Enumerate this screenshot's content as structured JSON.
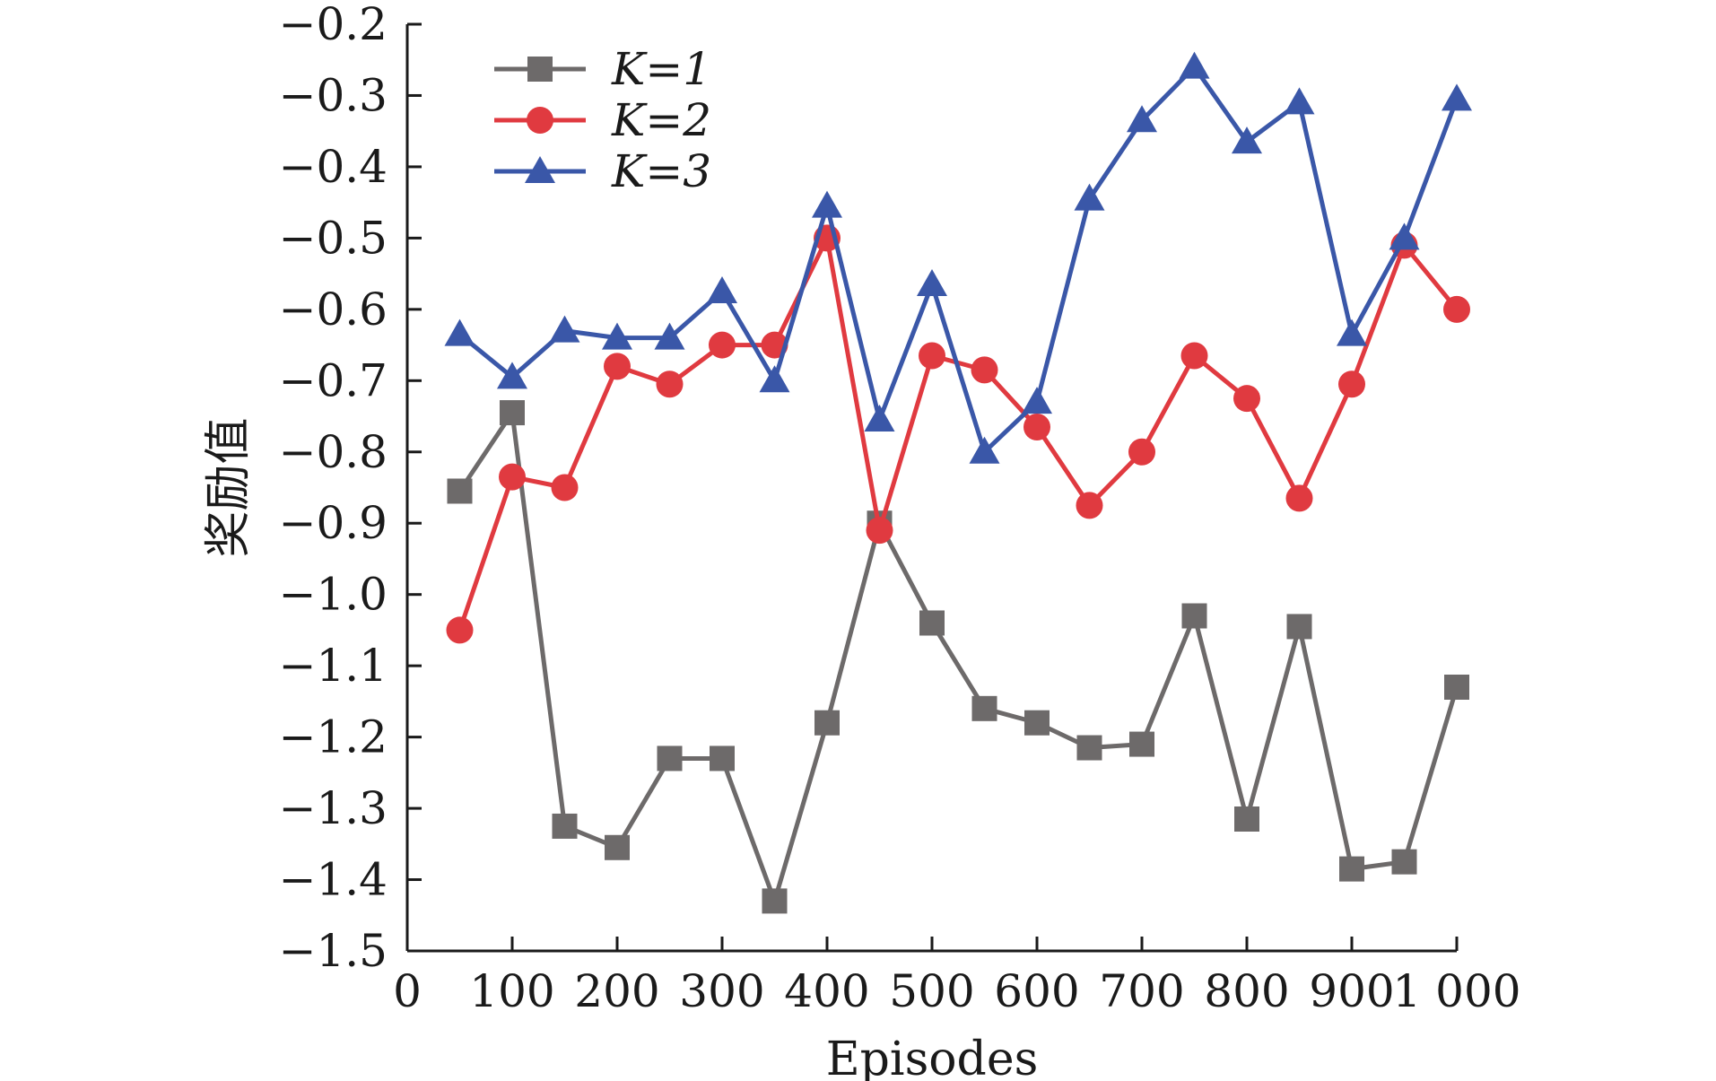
{
  "chart_data": {
    "type": "line",
    "xlabel": "Episodes",
    "ylabel": "奖励值",
    "xlim": [
      0,
      1000
    ],
    "ylim": [
      -1.5,
      -0.2
    ],
    "x_ticks": [
      0,
      100,
      200,
      300,
      400,
      500,
      600,
      700,
      800,
      900,
      1000
    ],
    "x_tick_labels": [
      "0",
      "100",
      "200",
      "300",
      "400",
      "500",
      "600",
      "700",
      "800",
      "900",
      "1 000"
    ],
    "y_ticks": [
      -0.2,
      -0.3,
      -0.4,
      -0.5,
      -0.6,
      -0.7,
      -0.8,
      -0.9,
      -1.0,
      -1.1,
      -1.2,
      -1.3,
      -1.4,
      -1.5
    ],
    "y_tick_labels": [
      "−0.2",
      "−0.3",
      "−0.4",
      "−0.5",
      "−0.6",
      "−0.7",
      "−0.8",
      "−0.9",
      "−1.0",
      "−1.1",
      "−1.2",
      "−1.3",
      "−1.4",
      "−1.5"
    ],
    "grid": false,
    "legend_position": "top-left",
    "x": [
      50,
      100,
      150,
      200,
      250,
      300,
      350,
      400,
      450,
      500,
      550,
      600,
      650,
      700,
      750,
      800,
      850,
      900,
      950,
      1000
    ],
    "series": [
      {
        "name": "K=1",
        "marker": "square",
        "color": "#6d6a6a",
        "values": [
          -0.855,
          -0.745,
          -1.325,
          -1.355,
          -1.23,
          -1.23,
          -1.43,
          -1.18,
          -0.9,
          -1.04,
          -1.16,
          -1.18,
          -1.215,
          -1.21,
          -1.03,
          -1.315,
          -1.045,
          -1.385,
          -1.375,
          -1.13
        ]
      },
      {
        "name": "K=2",
        "marker": "circle",
        "color": "#e03a40",
        "values": [
          -1.05,
          -0.835,
          -0.85,
          -0.68,
          -0.705,
          -0.65,
          -0.65,
          -0.5,
          -0.91,
          -0.665,
          -0.685,
          -0.765,
          -0.875,
          -0.8,
          -0.665,
          -0.725,
          -0.865,
          -0.705,
          -0.51,
          -0.6
        ]
      },
      {
        "name": "K=3",
        "marker": "triangle",
        "color": "#3a57a8",
        "values": [
          -0.635,
          -0.695,
          -0.63,
          -0.64,
          -0.64,
          -0.575,
          -0.7,
          -0.455,
          -0.755,
          -0.565,
          -0.8,
          -0.73,
          -0.445,
          -0.335,
          -0.26,
          -0.365,
          -0.31,
          -0.635,
          -0.5,
          -0.305
        ]
      }
    ]
  }
}
